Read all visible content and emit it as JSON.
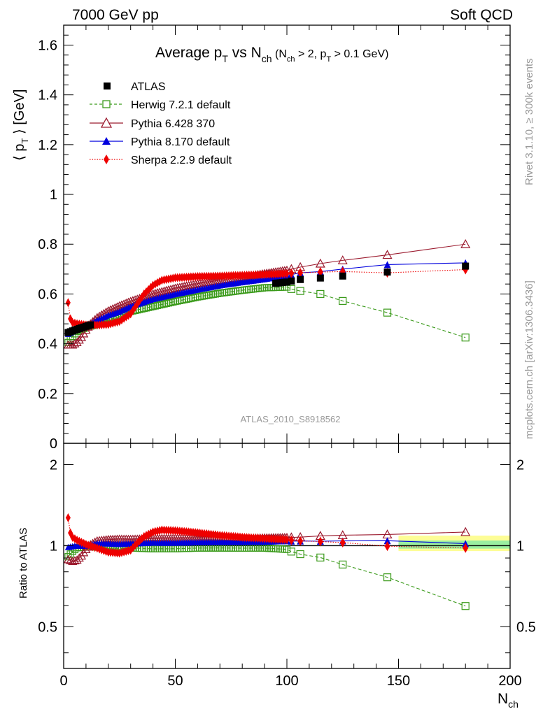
{
  "header": {
    "left": "7000 GeV pp",
    "right": "Soft QCD"
  },
  "side_labels": {
    "rivet": "Rivet 3.1.10, ≥ 300k events",
    "mcplots": "mcplots.cern.ch [arXiv:1306.3436]"
  },
  "plot_title": {
    "main_avg": "Average p",
    "main_sub_t": "T",
    "main_vs": " vs N",
    "main_sub_ch": "ch",
    "cond_open": " (N",
    "cond_sub_ch": "ch",
    "cond_mid": " > 2, p",
    "cond_sub_t": "T",
    "cond_end": " > 0.1 GeV)"
  },
  "analysis_id": "ATLAS_2010_S8918562",
  "ylabel_main": {
    "open": "⟨ p",
    "sub": "T",
    "close": " ⟩  [GeV]"
  },
  "ylabel_ratio": "Ratio to ATLAS",
  "xlabel": {
    "base": "N",
    "sub": "ch"
  },
  "legend": [
    {
      "label": "ATLAS",
      "color": "#000000",
      "marker": "square-filled",
      "line": "none"
    },
    {
      "label": "Herwig 7.2.1 default",
      "color": "#3a9a1a",
      "marker": "square-open",
      "line": "dashed"
    },
    {
      "label": "Pythia 6.428 370",
      "color": "#9b1a2e",
      "marker": "triangle-open",
      "line": "solid"
    },
    {
      "label": "Pythia 8.170 default",
      "color": "#0000dd",
      "marker": "triangle-filled",
      "line": "solid"
    },
    {
      "label": "Sherpa 2.2.9 default",
      "color": "#ee0000",
      "marker": "diamond-filled",
      "line": "dotted"
    }
  ],
  "chart_data": {
    "type": "scatter",
    "x_range": [
      0,
      200
    ],
    "main_ylim": [
      0,
      1.68
    ],
    "ratio_ylim": [
      0.35,
      2.4
    ],
    "ratio_log_scale": true,
    "x_ticks": [
      0,
      50,
      100,
      150,
      200
    ],
    "main_y_ticks": [
      0,
      0.2,
      0.4,
      0.6,
      0.8,
      1,
      1.2,
      1.4,
      1.6
    ],
    "main_y_tick_labels": [
      "0",
      "0.2",
      "0.4",
      "0.6",
      "0.8",
      "1",
      "1.2",
      "1.4",
      "1.6"
    ],
    "ratio_y_ticks": [
      0.5,
      1,
      2
    ],
    "ratio_y_tick_labels": [
      "0.5",
      "1",
      "2"
    ],
    "dense_x_start": 2,
    "dense_x_end": 100,
    "sparse_x": [
      102,
      106,
      115,
      125,
      145,
      180
    ],
    "atlas": {
      "dense": [
        [
          2,
          0.445
        ],
        [
          5,
          0.455
        ],
        [
          10,
          0.47
        ],
        [
          15,
          0.485
        ],
        [
          20,
          0.505
        ],
        [
          25,
          0.522
        ],
        [
          30,
          0.54
        ],
        [
          40,
          0.565
        ],
        [
          50,
          0.585
        ],
        [
          60,
          0.6
        ],
        [
          70,
          0.615
        ],
        [
          80,
          0.628
        ],
        [
          90,
          0.638
        ],
        [
          100,
          0.648
        ]
      ],
      "sparse": [
        0.652,
        0.658,
        0.664,
        0.672,
        0.688,
        0.712
      ]
    },
    "herwig": {
      "dense": [
        [
          2,
          0.405
        ],
        [
          4,
          0.43
        ],
        [
          6,
          0.45
        ],
        [
          10,
          0.465
        ],
        [
          15,
          0.48
        ],
        [
          20,
          0.495
        ],
        [
          25,
          0.51
        ],
        [
          30,
          0.53
        ],
        [
          40,
          0.55
        ],
        [
          50,
          0.57
        ],
        [
          60,
          0.588
        ],
        [
          70,
          0.603
        ],
        [
          80,
          0.615
        ],
        [
          90,
          0.625
        ],
        [
          100,
          0.628
        ]
      ],
      "sparse": [
        0.62,
        0.612,
        0.6,
        0.572,
        0.525,
        0.425
      ]
    },
    "pythia6": {
      "dense": [
        [
          2,
          0.395
        ],
        [
          4,
          0.395
        ],
        [
          6,
          0.405
        ],
        [
          8,
          0.425
        ],
        [
          10,
          0.455
        ],
        [
          12,
          0.48
        ],
        [
          15,
          0.505
        ],
        [
          20,
          0.532
        ],
        [
          25,
          0.552
        ],
        [
          30,
          0.57
        ],
        [
          40,
          0.6
        ],
        [
          50,
          0.623
        ],
        [
          60,
          0.641
        ],
        [
          70,
          0.655
        ],
        [
          80,
          0.668
        ],
        [
          90,
          0.682
        ],
        [
          100,
          0.695
        ]
      ],
      "sparse": [
        0.7,
        0.708,
        0.722,
        0.735,
        0.757,
        0.8
      ]
    },
    "pythia8": {
      "dense": [
        [
          2,
          0.44
        ],
        [
          5,
          0.455
        ],
        [
          10,
          0.47
        ],
        [
          15,
          0.495
        ],
        [
          20,
          0.515
        ],
        [
          25,
          0.53
        ],
        [
          30,
          0.55
        ],
        [
          40,
          0.58
        ],
        [
          50,
          0.6
        ],
        [
          60,
          0.618
        ],
        [
          70,
          0.635
        ],
        [
          80,
          0.648
        ],
        [
          90,
          0.66
        ],
        [
          100,
          0.675
        ]
      ],
      "sparse": [
        0.678,
        0.685,
        0.69,
        0.7,
        0.718,
        0.725
      ]
    },
    "sherpa": {
      "dense": [
        [
          2,
          0.565
        ],
        [
          3,
          0.5
        ],
        [
          4,
          0.485
        ],
        [
          6,
          0.48
        ],
        [
          10,
          0.475
        ],
        [
          15,
          0.475
        ],
        [
          20,
          0.478
        ],
        [
          25,
          0.49
        ],
        [
          30,
          0.52
        ],
        [
          33,
          0.56
        ],
        [
          36,
          0.6
        ],
        [
          40,
          0.635
        ],
        [
          44,
          0.655
        ],
        [
          50,
          0.665
        ],
        [
          60,
          0.67
        ],
        [
          70,
          0.672
        ],
        [
          80,
          0.675
        ],
        [
          90,
          0.678
        ],
        [
          100,
          0.682
        ]
      ],
      "sparse": [
        0.683,
        0.685,
        0.688,
        0.69,
        0.685,
        0.698
      ]
    },
    "ratio_band": {
      "inner": [
        0.975,
        1.045
      ],
      "outer": [
        0.955,
        1.09
      ],
      "x_from": 150
    }
  }
}
